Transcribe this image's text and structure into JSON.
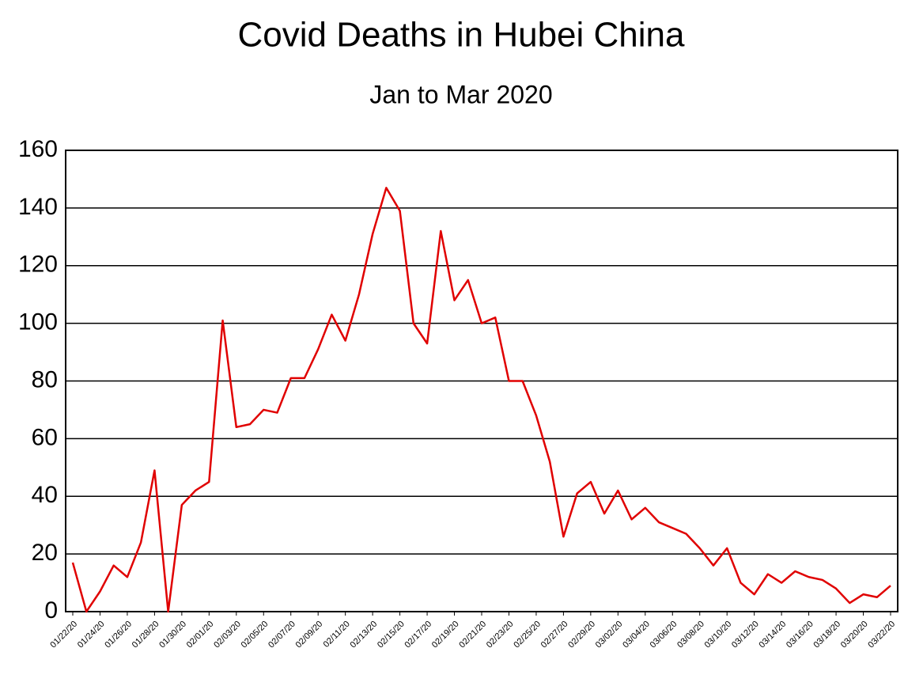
{
  "chart_data": {
    "type": "line",
    "title": "Covid Deaths in Hubei China",
    "subtitle": "Jan to Mar 2020",
    "categories": [
      "01/22/20",
      null,
      "01/24/20",
      null,
      "01/26/20",
      null,
      "01/28/20",
      null,
      "01/30/20",
      null,
      "02/01/20",
      null,
      "02/03/20",
      null,
      "02/05/20",
      null,
      "02/07/20",
      null,
      "02/09/20",
      null,
      "02/11/20",
      null,
      "02/13/20",
      null,
      "02/15/20",
      null,
      "02/17/20",
      null,
      "02/19/20",
      null,
      "02/21/20",
      null,
      "02/23/20",
      null,
      "02/25/20",
      null,
      "02/27/20",
      null,
      "02/29/20",
      null,
      "03/02/20",
      null,
      "03/04/20",
      null,
      "03/06/20",
      null,
      "03/08/20",
      null,
      "03/10/20",
      null,
      "03/12/20",
      null,
      "03/14/20",
      null,
      "03/16/20",
      null,
      "03/18/20",
      null,
      "03/20/20",
      null,
      "03/22/20"
    ],
    "series": [
      {
        "color": "#e00000",
        "values": [
          17,
          0,
          7,
          16,
          12,
          24,
          49,
          0,
          37,
          42,
          45,
          101,
          64,
          65,
          70,
          69,
          81,
          81,
          91,
          103,
          94,
          110,
          131,
          147,
          139,
          100,
          93,
          132,
          108,
          115,
          100,
          102,
          80,
          80,
          68,
          52,
          26,
          41,
          45,
          34,
          42,
          32,
          36,
          31,
          29,
          27,
          22,
          16,
          22,
          10,
          6,
          13,
          10,
          14,
          12,
          11,
          8,
          3,
          6,
          5,
          9
        ]
      }
    ],
    "ylim": [
      0,
      160
    ],
    "yticks": [
      0,
      20,
      40,
      60,
      80,
      100,
      120,
      140,
      160
    ],
    "grid": true
  }
}
